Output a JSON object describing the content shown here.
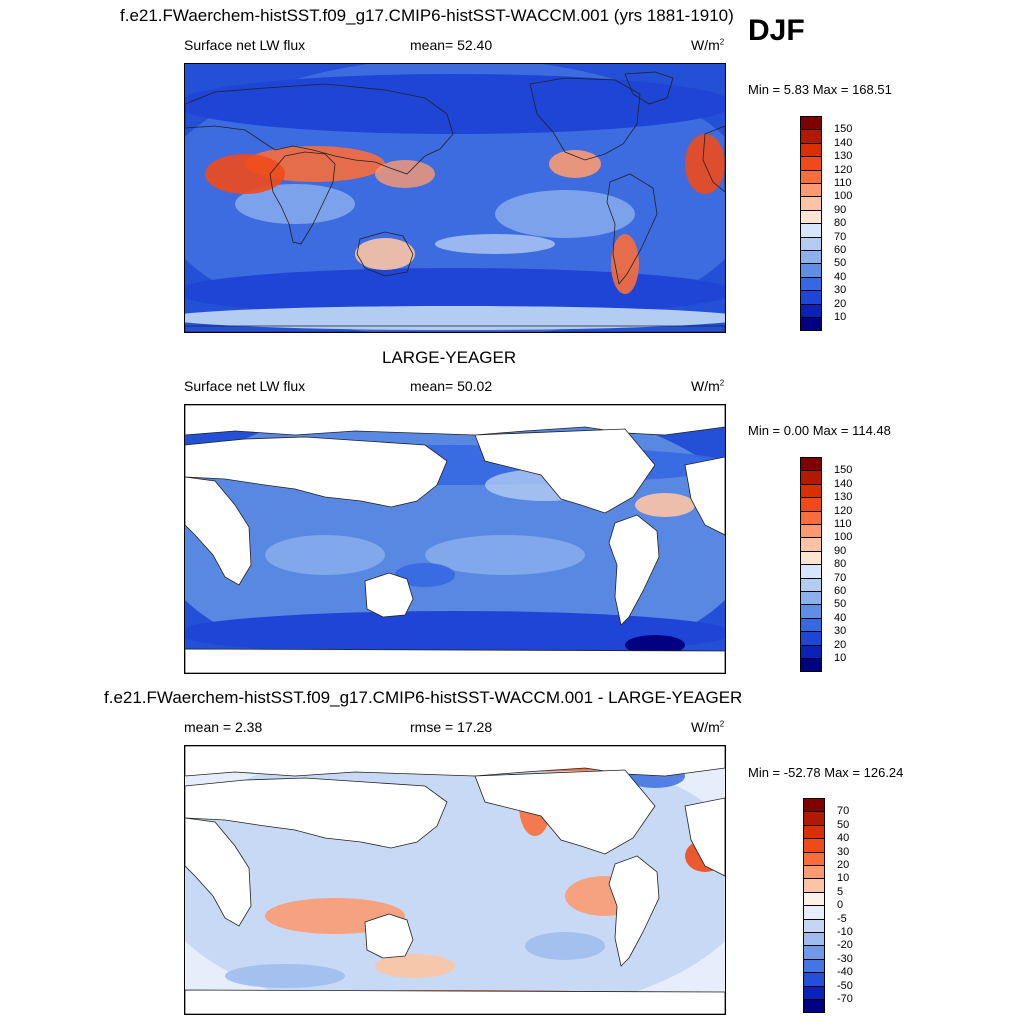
{
  "season": "DJF",
  "panels": [
    {
      "title": "f.e21.FWaerchem-histSST.f09_g17.CMIP6-histSST-WACCM.001 (yrs 1881-1910)",
      "left_label": "Surface net LW flux",
      "center_label": "mean=  52.40",
      "units": "W/m",
      "units_sup": "2",
      "min_label": "Min =   5.83",
      "max_label": "Max = 168.51",
      "land_filled": true,
      "colorbar": {
        "labels": [
          "150",
          "140",
          "130",
          "120",
          "110",
          "100",
          "90",
          "80",
          "70",
          "60",
          "50",
          "40",
          "30",
          "20",
          "10"
        ],
        "colors": [
          "#7f0000",
          "#b11a00",
          "#d93000",
          "#f04a1a",
          "#f76e3c",
          "#fb9a72",
          "#fcc4a4",
          "#fde5d3",
          "#d7e6f8",
          "#b2ccf2",
          "#8bb0ec",
          "#5f8ee4",
          "#3568e2",
          "#1f45d6",
          "#0b22b8",
          "#000080"
        ]
      }
    },
    {
      "title": "LARGE-YEAGER",
      "left_label": "Surface net LW flux",
      "center_label": "mean=  50.02",
      "units": "W/m",
      "units_sup": "2",
      "min_label": "Min =   0.00",
      "max_label": "Max = 114.48",
      "land_filled": false,
      "colorbar": {
        "labels": [
          "150",
          "140",
          "130",
          "120",
          "110",
          "100",
          "90",
          "80",
          "70",
          "60",
          "50",
          "40",
          "30",
          "20",
          "10"
        ],
        "colors": [
          "#7f0000",
          "#b11a00",
          "#d93000",
          "#f04a1a",
          "#f76e3c",
          "#fb9a72",
          "#fcc4a4",
          "#fde5d3",
          "#d7e6f8",
          "#b2ccf2",
          "#8bb0ec",
          "#5f8ee4",
          "#3568e2",
          "#1f45d6",
          "#0b22b8",
          "#000080"
        ]
      }
    },
    {
      "title": "f.e21.FWaerchem-histSST.f09_g17.CMIP6-histSST-WACCM.001 - LARGE-YEAGER",
      "left_label": "mean =   2.38",
      "center_label": "rmse =  17.28",
      "units": "W/m",
      "units_sup": "2",
      "min_label": "Min = -52.78",
      "max_label": "Max = 126.24",
      "land_filled": false,
      "colorbar": {
        "labels": [
          "70",
          "50",
          "40",
          "30",
          "20",
          "10",
          "5",
          "0",
          "-5",
          "-10",
          "-20",
          "-30",
          "-40",
          "-50",
          "-70"
        ],
        "colors": [
          "#7f0000",
          "#b11a00",
          "#d93000",
          "#f04a1a",
          "#f76e3c",
          "#fb9a72",
          "#fcc4a4",
          "#fdf0e6",
          "#e6eefb",
          "#c4d6f4",
          "#9ebcee",
          "#7099e6",
          "#4575e0",
          "#2450d8",
          "#0b22b8",
          "#000080"
        ]
      }
    }
  ]
}
